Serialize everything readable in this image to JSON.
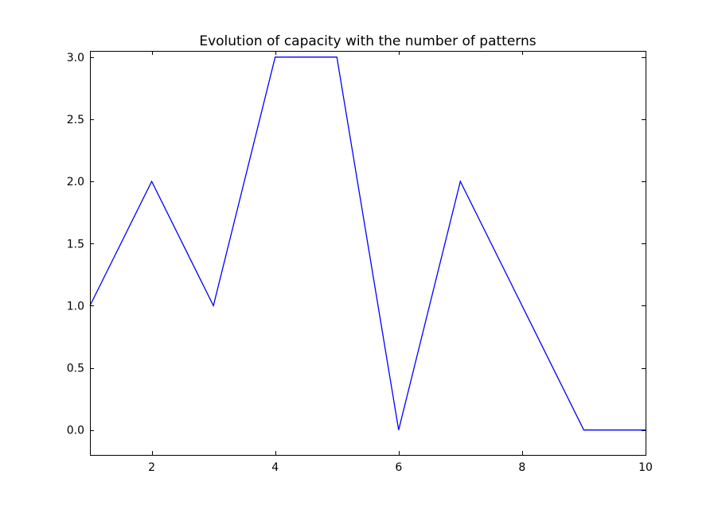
{
  "chart_data": {
    "type": "line",
    "title": "Evolution of capacity with the number of patterns",
    "xlabel": "",
    "ylabel": "",
    "xlim": [
      1,
      10
    ],
    "ylim": [
      -0.2,
      3.05
    ],
    "x_ticks": [
      2,
      4,
      6,
      8,
      10
    ],
    "x_tick_labels": [
      "2",
      "4",
      "6",
      "8",
      "10"
    ],
    "y_ticks": [
      0.0,
      0.5,
      1.0,
      1.5,
      2.0,
      2.5,
      3.0
    ],
    "y_tick_labels": [
      "0.0",
      "0.5",
      "1.0",
      "1.5",
      "2.0",
      "2.5",
      "3.0"
    ],
    "grid": false,
    "series": [
      {
        "color": "#0000ff",
        "x": [
          1,
          2,
          3,
          4,
          5,
          6,
          7,
          8,
          9,
          10
        ],
        "y": [
          1,
          2,
          1,
          3,
          3,
          0,
          2,
          1,
          0,
          0
        ]
      }
    ]
  }
}
